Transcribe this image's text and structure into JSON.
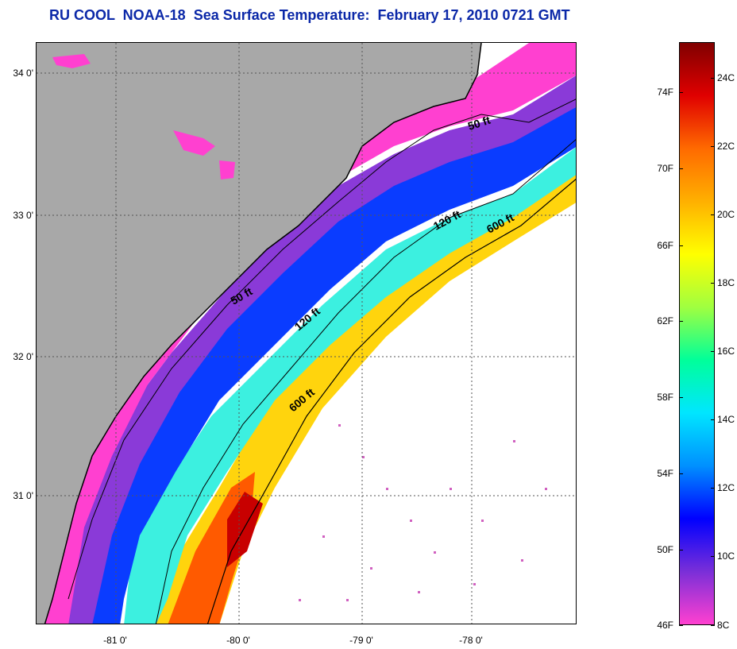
{
  "title": "RU COOL  NOAA-18  Sea Surface Temperature:  February 17, 2010 0721 GMT",
  "map": {
    "lat_labels": [
      "34 0'",
      "33 0'",
      "32 0'",
      "31 0'"
    ],
    "lon_labels": [
      "-81 0'",
      "-80 0'",
      "-79 0'",
      "-78 0'"
    ],
    "contours": [
      {
        "label": "50 ft",
        "text": "50 ft"
      },
      {
        "label": "50 ft",
        "text": "50 ft"
      },
      {
        "label": "120 ft",
        "text": "120 ft"
      },
      {
        "label": "120 ft",
        "text": "120 ft"
      },
      {
        "label": "600 ft",
        "text": "600 ft"
      },
      {
        "label": "600 ft",
        "text": "600 ft"
      }
    ],
    "colors": {
      "land": "#a8a8a8",
      "no_data": "#ffffff",
      "grid": "#555555"
    }
  },
  "colorbar": {
    "fahrenheit_labels": [
      "74F",
      "70F",
      "66F",
      "62F",
      "58F",
      "54F",
      "50F",
      "46F"
    ],
    "celsius_labels": [
      "24C",
      "22C",
      "20C",
      "18C",
      "16C",
      "14C",
      "12C",
      "10C",
      "8C"
    ],
    "gradient_stops": [
      "#800000",
      "#e00000",
      "#ff6a00",
      "#ffb000",
      "#ffff00",
      "#a0ff40",
      "#00ff9a",
      "#00e6ff",
      "#0090ff",
      "#0000ff",
      "#7a2fd8",
      "#ff40d0"
    ]
  }
}
